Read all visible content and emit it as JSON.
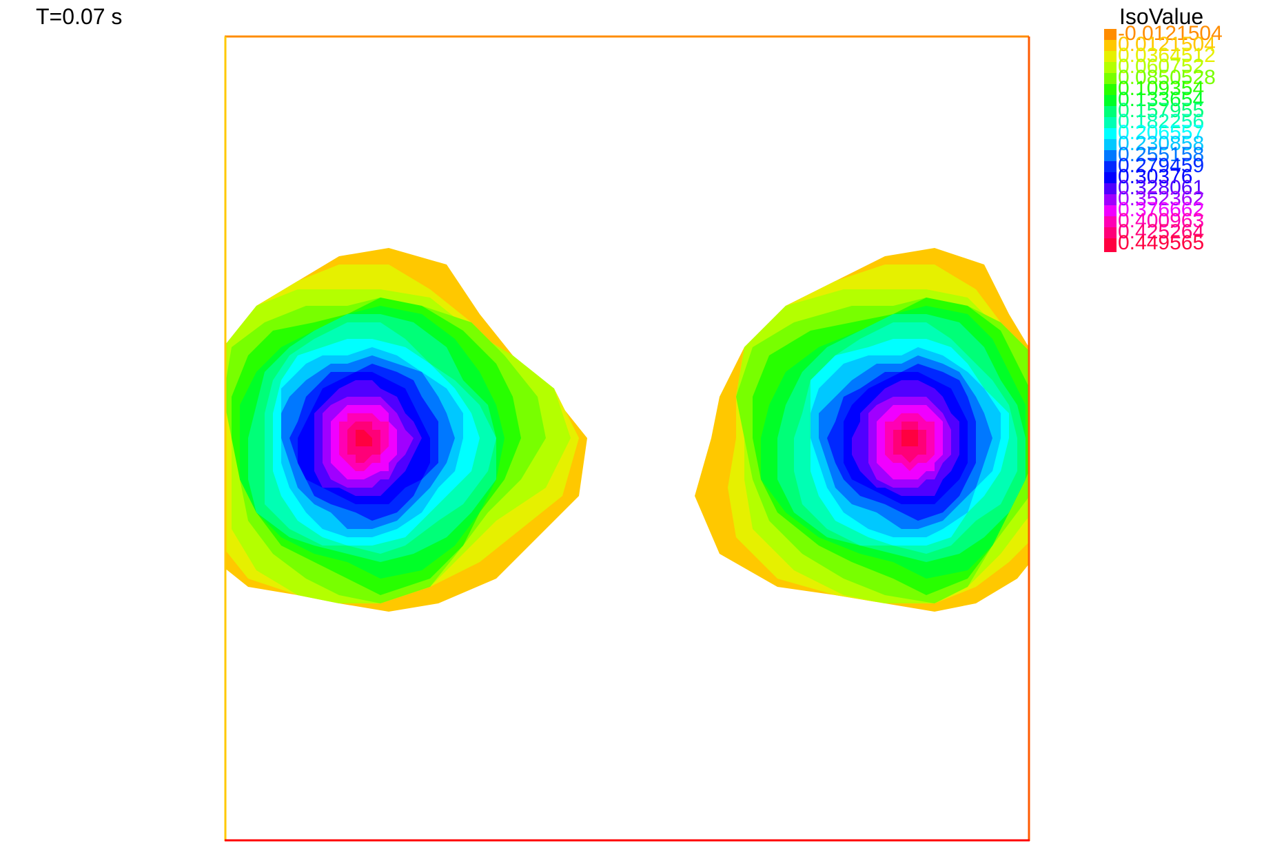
{
  "time_label": "T=0.07 s",
  "legend": {
    "title": "IsoValue",
    "entries": [
      {
        "label": "-0.0121504",
        "color": "#ff8c00"
      },
      {
        "label": "0.0121504",
        "color": "#ffc800"
      },
      {
        "label": "0.0364512",
        "color": "#e6f000"
      },
      {
        "label": "0.060752",
        "color": "#b4ff00"
      },
      {
        "label": "0.0850528",
        "color": "#78ff00"
      },
      {
        "label": "0.109354",
        "color": "#28ff00"
      },
      {
        "label": "0.133654",
        "color": "#00ff28"
      },
      {
        "label": "0.157955",
        "color": "#00ff78"
      },
      {
        "label": "0.182256",
        "color": "#00ffb4"
      },
      {
        "label": "0.206557",
        "color": "#00ffff"
      },
      {
        "label": "0.230858",
        "color": "#00c8ff"
      },
      {
        "label": "0.255158",
        "color": "#0078ff"
      },
      {
        "label": "0.279459",
        "color": "#0028ff"
      },
      {
        "label": "0.30376",
        "color": "#0000ff"
      },
      {
        "label": "0.328061",
        "color": "#5000ff"
      },
      {
        "label": "0.352362",
        "color": "#a000ff"
      },
      {
        "label": "0.376662",
        "color": "#f000ff"
      },
      {
        "label": "0.400963",
        "color": "#ff00b4"
      },
      {
        "label": "0.425264",
        "color": "#ff0078"
      },
      {
        "label": "0.449565",
        "color": "#ff0040"
      }
    ]
  },
  "chart_data": {
    "type": "heatmap",
    "title": "",
    "xlabel": "",
    "ylabel": "",
    "field": "isovalue contours of scalar field, two symmetric blobs",
    "isovalues": [
      -0.0121504,
      0.0121504,
      0.0364512,
      0.060752,
      0.0850528,
      0.109354,
      0.133654,
      0.157955,
      0.182256,
      0.206557,
      0.230858,
      0.255158,
      0.279459,
      0.30376,
      0.328061,
      0.352362,
      0.376662,
      0.400963,
      0.425264,
      0.449565
    ],
    "blobs": [
      {
        "name": "left",
        "peak_value": 0.449565
      },
      {
        "name": "right",
        "peak_value": 0.449565
      }
    ],
    "frame_colors": {
      "top": "#ff8c00",
      "left": "#ffc800",
      "right": "#ff5a00",
      "bottom": "#ff0000"
    }
  }
}
